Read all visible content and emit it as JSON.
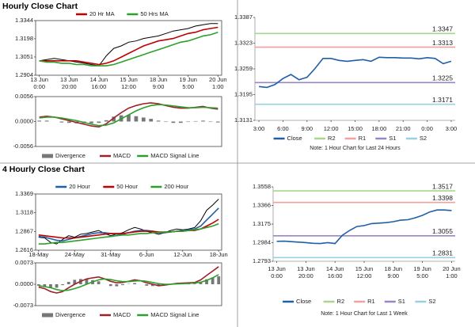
{
  "headings": [
    "Hourly Close Chart",
    "4 Hourly Close Chart"
  ],
  "chart_data": [
    {
      "type": "line",
      "legend": "top",
      "categories": [
        "13 Jun 0:00",
        null,
        null,
        null,
        "13 Jun 20:00",
        null,
        null,
        null,
        "14 Jun 16:00",
        null,
        null,
        null,
        "15 Jun 12:00",
        null,
        null,
        null,
        "18 Jun 9:00",
        null,
        null,
        null,
        "19 Jun 5:00",
        null,
        null,
        null,
        "20 Jun 1:00"
      ],
      "ylim": [
        1.2904,
        1.3344
      ],
      "yticks": [
        1.2904,
        1.3051,
        1.3198,
        1.3344
      ],
      "series": [
        {
          "color": "#000000",
          "values": [
            1.302,
            1.303,
            1.304,
            1.303,
            1.302,
            1.301,
            1.3,
            1.299,
            1.298,
            1.306,
            1.312,
            1.314,
            1.317,
            1.318,
            1.32,
            1.321,
            1.322,
            1.324,
            1.326,
            1.327,
            1.328,
            1.33,
            1.331,
            1.332,
            1.332
          ]
        },
        {
          "name": "20 Hr MA",
          "color": "#c00000",
          "values": [
            1.302,
            1.302,
            1.302,
            1.302,
            1.302,
            1.302,
            1.301,
            1.3,
            1.299,
            1.3,
            1.302,
            1.305,
            1.308,
            1.311,
            1.314,
            1.316,
            1.318,
            1.319,
            1.32,
            1.322,
            1.324,
            1.325,
            1.327,
            1.328,
            1.329
          ]
        },
        {
          "name": "50 Hrs MA",
          "color": "#2ca02c",
          "values": [
            1.302,
            1.301,
            1.301,
            1.3,
            1.3,
            1.299,
            1.299,
            1.298,
            1.298,
            1.298,
            1.299,
            1.301,
            1.303,
            1.305,
            1.307,
            1.309,
            1.311,
            1.313,
            1.315,
            1.317,
            1.318,
            1.32,
            1.322,
            1.323,
            1.325
          ]
        }
      ]
    },
    {
      "type": "macd",
      "legend": "bottom",
      "ylim": [
        -0.0056,
        0.0056
      ],
      "yticks": [
        0.0056,
        {
          "value": 0,
          "label": "0.0000"
        },
        -0.0056
      ],
      "series": [
        {
          "name": "Divergence",
          "color": "#777777",
          "kind": "bar",
          "values": [
            0.0002,
            0.0002,
            0,
            -0.0002,
            -0.0003,
            -0.0004,
            -0.0004,
            -0.0004,
            -0.0003,
            0.0003,
            0.0011,
            0.0014,
            0.0015,
            0.0012,
            0.0009,
            0.0006,
            0.0002,
            -0.0001,
            -0.0003,
            -0.0003,
            -0.0001,
            0.0001,
            0.0002,
            -0.0001,
            -0.0002
          ]
        },
        {
          "name": "MACD",
          "color": "#a0202a",
          "values": [
            0.001,
            0.0012,
            0.001,
            0.0006,
            0.0002,
            -0.0002,
            -0.0006,
            -0.001,
            -0.0012,
            -0.0005,
            0.0008,
            0.002,
            0.003,
            0.0036,
            0.004,
            0.0042,
            0.004,
            0.0036,
            0.0032,
            0.003,
            0.003,
            0.0032,
            0.0034,
            0.003,
            0.0028
          ]
        },
        {
          "name": "MACD Signal Line",
          "color": "#2ca02c",
          "values": [
            0.0008,
            0.001,
            0.001,
            0.0008,
            0.0005,
            0.0002,
            -0.0002,
            -0.0006,
            -0.0009,
            -0.0008,
            -0.0003,
            0.0006,
            0.0015,
            0.0024,
            0.0031,
            0.0036,
            0.0038,
            0.0037,
            0.0035,
            0.0033,
            0.0031,
            0.0031,
            0.0032,
            0.0031,
            0.003
          ]
        }
      ]
    },
    {
      "type": "levels",
      "legend": "bottom",
      "note": "Note: 1 Hour Chart for Last 24 Hours",
      "categories": [
        "3:00",
        null,
        null,
        "6:00",
        null,
        null,
        "9:00",
        null,
        null,
        "12:00",
        null,
        null,
        "15:00",
        null,
        null,
        "18:00",
        null,
        null,
        "21:00",
        null,
        null,
        "0:00",
        null,
        null,
        "3:00"
      ],
      "ylim": [
        1.3131,
        1.3387
      ],
      "yticks": [
        1.3131,
        1.3195,
        1.3259,
        1.3323,
        1.3387
      ],
      "series": [
        {
          "name": "Close",
          "color": "#1f5fa8",
          "values": [
            1.3215,
            1.3213,
            1.322,
            1.3235,
            1.3245,
            1.3232,
            1.3238,
            1.326,
            1.3285,
            1.3285,
            1.328,
            1.3278,
            1.328,
            1.3282,
            1.3278,
            1.3288,
            1.3287,
            1.3287,
            1.3286,
            1.3286,
            1.3284,
            1.3287,
            1.3285,
            1.3272,
            1.3278
          ]
        }
      ],
      "levels": [
        {
          "name": "R2",
          "value": 1.3347,
          "color": "#a8d68c"
        },
        {
          "name": "R1",
          "value": 1.3313,
          "color": "#f2a0a0"
        },
        {
          "name": "S1",
          "value": 1.3225,
          "color": "#9a86c6"
        },
        {
          "name": "S2",
          "value": 1.3171,
          "color": "#98d0e6"
        }
      ]
    },
    {
      "type": "line",
      "legend": "top",
      "categories": [
        "18-May",
        null,
        null,
        null,
        null,
        null,
        "24-May",
        null,
        null,
        null,
        null,
        null,
        "31-May",
        null,
        null,
        null,
        null,
        null,
        "6-Jun",
        null,
        null,
        null,
        null,
        null,
        "12-Jun",
        null,
        null,
        null,
        null,
        null,
        "18-Jun"
      ],
      "ylim": [
        1.2616,
        1.3369
      ],
      "yticks": [
        1.2616,
        1.2867,
        1.3118,
        1.3369
      ],
      "series": [
        {
          "color": "#000000",
          "values": [
            1.279,
            1.278,
            1.272,
            1.27,
            1.276,
            1.281,
            1.279,
            1.283,
            1.284,
            1.286,
            1.288,
            1.284,
            1.281,
            1.283,
            1.285,
            1.289,
            1.292,
            1.29,
            1.287,
            1.285,
            1.283,
            1.285,
            1.288,
            1.29,
            1.289,
            1.29,
            1.292,
            1.301,
            1.315,
            1.322,
            1.33
          ]
        },
        {
          "name": "20 Hour",
          "color": "#1f5fa8",
          "values": [
            1.28,
            1.279,
            1.277,
            1.275,
            1.274,
            1.276,
            1.278,
            1.28,
            1.282,
            1.284,
            1.285,
            1.285,
            1.284,
            1.283,
            1.283,
            1.285,
            1.287,
            1.288,
            1.288,
            1.287,
            1.285,
            1.285,
            1.286,
            1.287,
            1.288,
            1.289,
            1.29,
            1.294,
            1.302,
            1.31,
            1.318
          ]
        },
        {
          "name": "50 Hour",
          "color": "#c00000",
          "values": [
            1.282,
            1.281,
            1.28,
            1.279,
            1.278,
            1.278,
            1.278,
            1.279,
            1.28,
            1.281,
            1.282,
            1.283,
            1.284,
            1.284,
            1.284,
            1.285,
            1.286,
            1.287,
            1.287,
            1.287,
            1.286,
            1.286,
            1.286,
            1.287,
            1.287,
            1.288,
            1.288,
            1.29,
            1.294,
            1.298,
            1.303
          ]
        },
        {
          "name": "200 Hour",
          "color": "#2ca02c",
          "values": [
            1.27,
            1.27,
            1.271,
            1.272,
            1.272,
            1.273,
            1.274,
            1.275,
            1.276,
            1.277,
            1.278,
            1.279,
            1.28,
            1.281,
            1.282,
            1.282,
            1.283,
            1.284,
            1.284,
            1.285,
            1.285,
            1.286,
            1.286,
            1.287,
            1.287,
            1.288,
            1.289,
            1.29,
            1.292,
            1.294,
            1.297
          ]
        }
      ]
    },
    {
      "type": "macd",
      "legend": "bottom",
      "ylim": [
        -0.0073,
        0.0073
      ],
      "yticks": [
        0.0073,
        {
          "value": 0,
          "label": "0.0000"
        },
        -0.0073
      ],
      "series": [
        {
          "name": "Divergence",
          "color": "#777777",
          "kind": "bar",
          "values": [
            -0.0005,
            -0.0007,
            -0.0013,
            -0.0012,
            -0.0003,
            0.0008,
            0.0015,
            0.0018,
            0.0018,
            0.0014,
            0.001,
            0,
            -0.0006,
            -0.0007,
            -0.0003,
            0.0001,
            0.0004,
            0,
            -0.0005,
            -0.0006,
            -0.0007,
            -0.0003,
            0,
            0.0002,
            0.0002,
            0.0002,
            0.0002,
            0.0008,
            0.0017,
            0.0023,
            0.0027
          ]
        },
        {
          "name": "MACD",
          "color": "#a0202a",
          "values": [
            -0.001,
            -0.0015,
            -0.0025,
            -0.003,
            -0.0025,
            -0.0012,
            0,
            0.001,
            0.0018,
            0.0022,
            0.0025,
            0.0018,
            0.001,
            0.0005,
            0.0006,
            0.001,
            0.0015,
            0.0012,
            0.0005,
            0,
            -0.0005,
            -0.0003,
            0,
            0.0003,
            0.0004,
            0.0005,
            0.0006,
            0.0015,
            0.003,
            0.0045,
            0.006
          ]
        },
        {
          "name": "MACD Signal Line",
          "color": "#2ca02c",
          "values": [
            -0.0005,
            -0.0008,
            -0.0012,
            -0.0018,
            -0.0022,
            -0.002,
            -0.0015,
            -0.0008,
            0,
            0.0008,
            0.0015,
            0.0018,
            0.0016,
            0.0012,
            0.0009,
            0.0009,
            0.0011,
            0.0012,
            0.001,
            0.0006,
            0.0002,
            0,
            0,
            0.0001,
            0.0002,
            0.0003,
            0.0004,
            0.0007,
            0.0013,
            0.0022,
            0.0033
          ]
        }
      ]
    },
    {
      "type": "levels",
      "legend": "bottom",
      "note": "Note: 1 Hour Chart for Last 1 Week",
      "categories": [
        "13 Jun 0:00",
        null,
        null,
        null,
        "13 Jun 20:00",
        null,
        null,
        null,
        "14 Jun 16:00",
        null,
        null,
        null,
        "15 Jun 12:00",
        null,
        null,
        null,
        "18 Jun 9:00",
        null,
        null,
        null,
        "19 Jun 5:00",
        null,
        null,
        null,
        "20 Jun 1:00"
      ],
      "ylim": [
        1.2793,
        1.3558
      ],
      "yticks": [
        1.2793,
        1.2984,
        1.3175,
        1.3366,
        1.3558
      ],
      "series": [
        {
          "name": "Close",
          "color": "#1f5fa8",
          "values": [
            1.2998,
            1.3,
            1.2995,
            1.299,
            1.2985,
            1.2978,
            1.2975,
            1.2985,
            1.2975,
            1.306,
            1.311,
            1.315,
            1.316,
            1.318,
            1.3185,
            1.319,
            1.32,
            1.3215,
            1.322,
            1.324,
            1.3265,
            1.33,
            1.332,
            1.332,
            1.3315
          ]
        }
      ],
      "levels": [
        {
          "name": "R2",
          "value": 1.3517,
          "color": "#a8d68c"
        },
        {
          "name": "R1",
          "value": 1.3398,
          "color": "#f2a0a0"
        },
        {
          "name": "S1",
          "value": 1.3055,
          "color": "#9a86c6"
        },
        {
          "name": "S2",
          "value": 1.2831,
          "color": "#98d0e6"
        }
      ]
    }
  ]
}
